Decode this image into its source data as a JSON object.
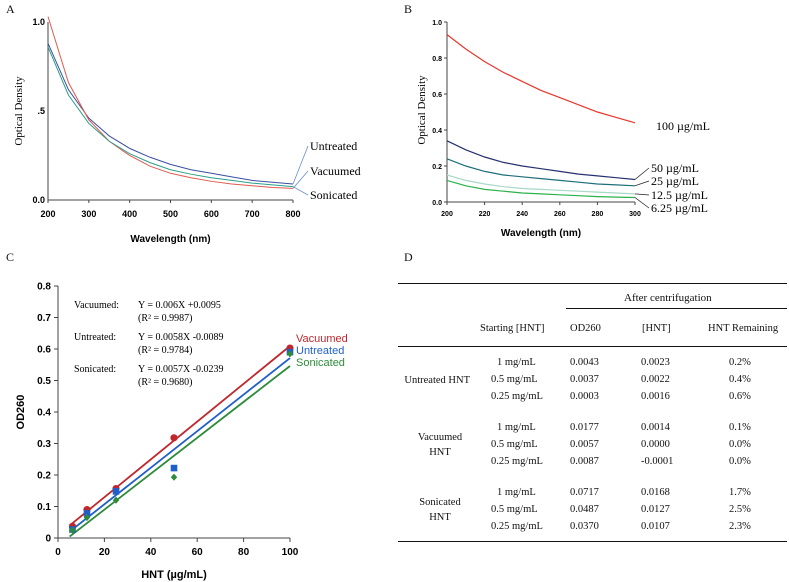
{
  "chart_data": [
    {
      "panel": "A",
      "type": "line",
      "xlabel": "Wavelength (nm)",
      "ylabel": "Optical Density",
      "xlim": [
        200,
        800
      ],
      "ylim": [
        0,
        1.0
      ],
      "x_ticks": [
        "200",
        "300",
        "400",
        "500",
        "600",
        "700",
        "800"
      ],
      "y_ticks": [
        "0.0",
        ".5",
        "1.0"
      ],
      "x": [
        200,
        250,
        300,
        350,
        400,
        450,
        500,
        550,
        600,
        650,
        700,
        750,
        800
      ],
      "series": [
        {
          "name": "Untreated",
          "color": "#3a4fa0",
          "values": [
            0.88,
            0.62,
            0.46,
            0.36,
            0.29,
            0.24,
            0.2,
            0.17,
            0.15,
            0.13,
            0.11,
            0.1,
            0.09
          ]
        },
        {
          "name": "Vacuumed",
          "color": "#e05a4e",
          "values": [
            1.03,
            0.66,
            0.45,
            0.33,
            0.25,
            0.19,
            0.15,
            0.125,
            0.105,
            0.09,
            0.08,
            0.07,
            0.065
          ]
        },
        {
          "name": "Sonicated",
          "color": "#2aa08a",
          "values": [
            0.86,
            0.59,
            0.43,
            0.33,
            0.26,
            0.21,
            0.17,
            0.145,
            0.125,
            0.11,
            0.095,
            0.085,
            0.075
          ]
        }
      ]
    },
    {
      "panel": "B",
      "type": "line",
      "xlabel": "Wavelength (nm)",
      "ylabel": "Optical Density",
      "xlim": [
        200,
        300
      ],
      "ylim": [
        0,
        1.0
      ],
      "x_ticks": [
        "200",
        "220",
        "240",
        "260",
        "280",
        "300"
      ],
      "y_ticks": [
        "0.0",
        "0.2",
        "0.4",
        "0.6",
        "0.8",
        "1.0"
      ],
      "x": [
        200,
        210,
        220,
        230,
        240,
        250,
        260,
        270,
        280,
        290,
        300
      ],
      "series": [
        {
          "name": "100 µg/mL",
          "color": "#e8362a",
          "values": [
            0.93,
            0.85,
            0.78,
            0.72,
            0.67,
            0.62,
            0.58,
            0.54,
            0.5,
            0.47,
            0.44
          ]
        },
        {
          "name": "50 µg/mL",
          "color": "#26306e",
          "values": [
            0.34,
            0.29,
            0.25,
            0.22,
            0.2,
            0.185,
            0.17,
            0.155,
            0.145,
            0.135,
            0.125
          ]
        },
        {
          "name": "25 µg/mL",
          "color": "#1e6f7a",
          "values": [
            0.24,
            0.2,
            0.17,
            0.15,
            0.14,
            0.13,
            0.12,
            0.11,
            0.1,
            0.095,
            0.09
          ]
        },
        {
          "name": "12.5 µg/mL",
          "color": "#a8d8c8",
          "values": [
            0.15,
            0.12,
            0.1,
            0.085,
            0.075,
            0.07,
            0.065,
            0.06,
            0.055,
            0.05,
            0.045
          ]
        },
        {
          "name": "6.25 µg/mL",
          "color": "#2bb24c",
          "values": [
            0.12,
            0.09,
            0.07,
            0.06,
            0.05,
            0.045,
            0.04,
            0.035,
            0.03,
            0.027,
            0.025
          ]
        }
      ]
    },
    {
      "panel": "C",
      "type": "scatter",
      "xlabel": "HNT (µg/mL)",
      "ylabel": "OD260",
      "xlim": [
        0,
        100
      ],
      "ylim": [
        0,
        0.8
      ],
      "x_ticks": [
        "0",
        "20",
        "40",
        "60",
        "80",
        "100"
      ],
      "y_ticks": [
        "0",
        "0.1",
        "0.2",
        "0.3",
        "0.4",
        "0.5",
        "0.6",
        "0.7",
        "0.8"
      ],
      "series": [
        {
          "name": "Vacuumed",
          "color": "#c0272d",
          "marker": "circle",
          "x": [
            6.25,
            12.5,
            25,
            50,
            100
          ],
          "y": [
            0.037,
            0.09,
            0.157,
            0.318,
            0.603
          ],
          "fit": {
            "slope": 0.006,
            "intercept": 0.0095
          }
        },
        {
          "name": "Untreated",
          "color": "#1f5fc8",
          "marker": "square",
          "x": [
            6.25,
            12.5,
            25,
            50,
            100
          ],
          "y": [
            0.027,
            0.078,
            0.148,
            0.222,
            0.59
          ],
          "fit": {
            "slope": 0.0058,
            "intercept": -0.0089
          }
        },
        {
          "name": "Sonicated",
          "color": "#2e8b3a",
          "marker": "diamond",
          "x": [
            6.25,
            12.5,
            25,
            50,
            100
          ],
          "y": [
            0.025,
            0.065,
            0.12,
            0.193,
            0.585
          ],
          "fit": {
            "slope": 0.0057,
            "intercept": -0.0239
          }
        }
      ],
      "equations": [
        {
          "label": "Vacuumed:",
          "eq": "Y = 0.006X +0.0095",
          "r2": "(R² = 0.9987)"
        },
        {
          "label": "Untreated:",
          "eq": "Y = 0.0058X -0.0089",
          "r2": "(R² = 0.9784)"
        },
        {
          "label": "Sonicated:",
          "eq": "Y = 0.0057X -0.0239",
          "r2": "(R² = 0.9680)"
        }
      ]
    },
    {
      "panel": "D",
      "type": "table",
      "group_header": "After centrifugation",
      "columns": [
        "Starting [HNT]",
        "OD260",
        "[HNT]",
        "HNT Remaining"
      ],
      "groups": [
        {
          "name": [
            "Untreated HNT"
          ],
          "rows": [
            [
              "1 mg/mL",
              "0.0043",
              "0.0023",
              "0.2%"
            ],
            [
              "0.5 mg/mL",
              "0.0037",
              "0.0022",
              "0.4%"
            ],
            [
              "0.25 mg/mL",
              "0.0003",
              "0.0016",
              "0.6%"
            ]
          ]
        },
        {
          "name": [
            "Vacuumed",
            "HNT"
          ],
          "rows": [
            [
              "1 mg/mL",
              "0.0177",
              "0.0014",
              "0.1%"
            ],
            [
              "0.5 mg/mL",
              "0.0057",
              "0.0000",
              "0.0%"
            ],
            [
              "0.25 mg/mL",
              "0.0087",
              "-0.0001",
              "0.0%"
            ]
          ]
        },
        {
          "name": [
            "Sonicated",
            "HNT"
          ],
          "rows": [
            [
              "1 mg/mL",
              "0.0717",
              "0.0168",
              "1.7%"
            ],
            [
              "0.5 mg/mL",
              "0.0487",
              "0.0127",
              "2.5%"
            ],
            [
              "0.25 mg/mL",
              "0.0370",
              "0.0107",
              "2.3%"
            ]
          ]
        }
      ]
    }
  ],
  "panel_labels": {
    "a": "A",
    "b": "B",
    "c": "C",
    "d": "D"
  }
}
